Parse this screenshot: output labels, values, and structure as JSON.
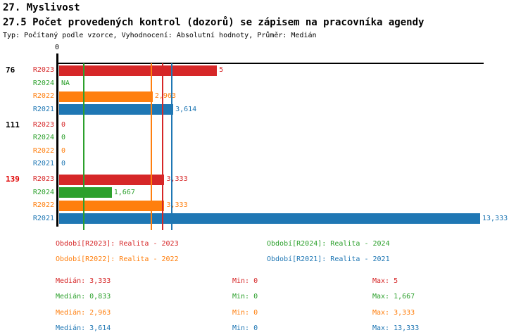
{
  "header": {
    "title": "27. Myslivost",
    "subtitle": "27.5 Počet provedených kontrol (dozorů) se zápisem na pracovníka agendy",
    "meta": "Typ: Počítaný podle vzorce, Vyhodnocení: Absolutní hodnoty, Průměr: Medián"
  },
  "colors": {
    "R2023": "#d62728",
    "R2024": "#2ca02c",
    "R2022": "#ff7f0e",
    "R2021": "#1f77b4",
    "axis": "#000000",
    "highlight_group": "#e00000"
  },
  "chart_data": {
    "type": "bar",
    "orientation": "horizontal",
    "title": "27.5 Počet provedených kontrol (dozorů) se zápisem na pracovníka agendy",
    "x_axis": {
      "origin_label": "0",
      "min": 0,
      "max_value": 13.333,
      "grid": false
    },
    "series_order": [
      "R2023",
      "R2024",
      "R2022",
      "R2021"
    ],
    "groups": [
      {
        "label": "76",
        "label_color": "#000000",
        "values": [
          {
            "series": "R2023",
            "value": 5,
            "display": "5"
          },
          {
            "series": "R2024",
            "value": null,
            "display": "NA"
          },
          {
            "series": "R2022",
            "value": 2.963,
            "display": "2,963"
          },
          {
            "series": "R2021",
            "value": 3.614,
            "display": "3,614"
          }
        ]
      },
      {
        "label": "111",
        "label_color": "#000000",
        "values": [
          {
            "series": "R2023",
            "value": 0,
            "display": "0"
          },
          {
            "series": "R2024",
            "value": 0,
            "display": "0"
          },
          {
            "series": "R2022",
            "value": 0,
            "display": "0"
          },
          {
            "series": "R2021",
            "value": 0,
            "display": "0"
          }
        ]
      },
      {
        "label": "139",
        "label_color": "#e00000",
        "values": [
          {
            "series": "R2023",
            "value": 3.333,
            "display": "3,333"
          },
          {
            "series": "R2024",
            "value": 1.667,
            "display": "1,667"
          },
          {
            "series": "R2022",
            "value": 3.333,
            "display": "3,333"
          },
          {
            "series": "R2021",
            "value": 13.333,
            "display": "13,333"
          }
        ]
      }
    ],
    "median_lines": [
      {
        "series": "R2023",
        "value": 3.333
      },
      {
        "series": "R2024",
        "value": 0.833
      },
      {
        "series": "R2022",
        "value": 2.963
      },
      {
        "series": "R2021",
        "value": 3.614
      }
    ]
  },
  "legend": {
    "items": [
      {
        "series": "R2023",
        "label": "Období[R2023]: Realita - 2023"
      },
      {
        "series": "R2024",
        "label": "Období[R2024]: Realita - 2024"
      },
      {
        "series": "R2022",
        "label": "Období[R2022]: Realita - 2022"
      },
      {
        "series": "R2021",
        "label": "Období[R2021]: Realita - 2021"
      }
    ]
  },
  "stats": {
    "rows": [
      {
        "series": "R2023",
        "median": "Medián: 3,333",
        "min": "Min: 0",
        "max": "Max: 5"
      },
      {
        "series": "R2024",
        "median": "Medián: 0,833",
        "min": "Min: 0",
        "max": "Max: 1,667"
      },
      {
        "series": "R2022",
        "median": "Medián: 2,963",
        "min": "Min: 0",
        "max": "Max: 3,333"
      },
      {
        "series": "R2021",
        "median": "Medián: 3,614",
        "min": "Min: 0",
        "max": "Max: 13,333"
      }
    ]
  }
}
